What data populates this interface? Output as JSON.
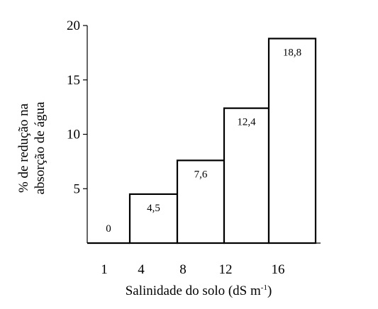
{
  "chart_data": {
    "type": "bar",
    "categories": [
      "1",
      "4",
      "8",
      "12",
      "16"
    ],
    "values": [
      0,
      4.5,
      7.6,
      12.4,
      18.8
    ],
    "data_labels": [
      "0",
      "4,5",
      "7,6",
      "12,4",
      "18,8"
    ],
    "title": "",
    "xlabel": "Salinidade do solo (dS m",
    "xlabel_superscript": "-1",
    "xlabel_suffix": ")",
    "ylabel_line1": "% de redução na",
    "ylabel_line2": "absorção de água",
    "y_ticks": [
      "5",
      "10",
      "15",
      "20"
    ],
    "y_tick_values": [
      5,
      10,
      15,
      20
    ],
    "ylim": [
      0,
      20
    ],
    "grid": false,
    "legend": "none",
    "bar_fill": "#ffffff",
    "bar_stroke": "#000000"
  }
}
